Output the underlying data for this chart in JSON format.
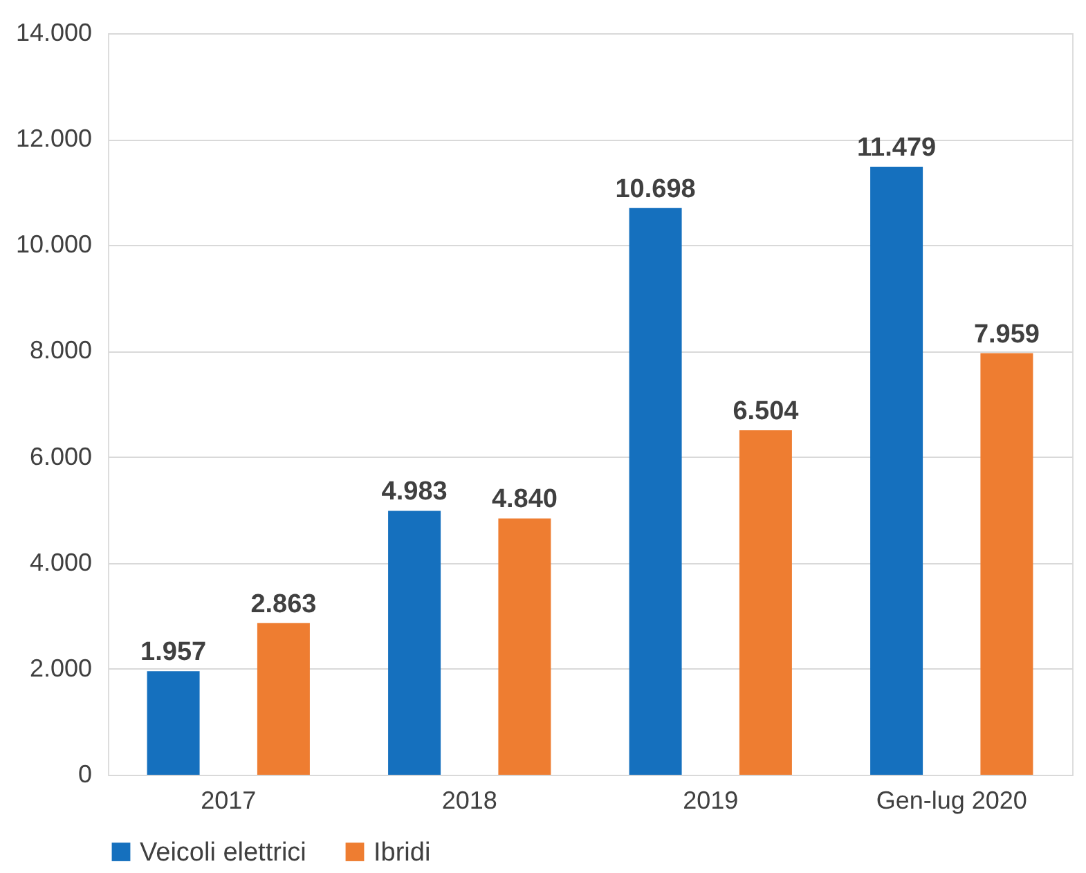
{
  "chart_data": {
    "type": "bar",
    "categories": [
      "2017",
      "2018",
      "2019",
      "Gen-lug 2020"
    ],
    "series": [
      {
        "name": "Veicoli elettrici",
        "color": "#1570be",
        "values": [
          1957,
          4983,
          10698,
          11479
        ],
        "value_labels": [
          "1.957",
          "4.983",
          "10.698",
          "11.479"
        ]
      },
      {
        "name": "Ibridi",
        "color": "#ee7d31",
        "values": [
          2863,
          4840,
          6504,
          7959
        ],
        "value_labels": [
          "2.863",
          "4.840",
          "6.504",
          "7.959"
        ]
      }
    ],
    "ylim": [
      0,
      14000
    ],
    "yticks": [
      {
        "value": 0,
        "label": "0"
      },
      {
        "value": 2000,
        "label": "2.000"
      },
      {
        "value": 4000,
        "label": "4.000"
      },
      {
        "value": 6000,
        "label": "6.000"
      },
      {
        "value": 8000,
        "label": "8.000"
      },
      {
        "value": 10000,
        "label": "10.000"
      },
      {
        "value": 12000,
        "label": "12.000"
      },
      {
        "value": 14000,
        "label": "14.000"
      }
    ],
    "grid": "y",
    "legend": "bottom"
  }
}
